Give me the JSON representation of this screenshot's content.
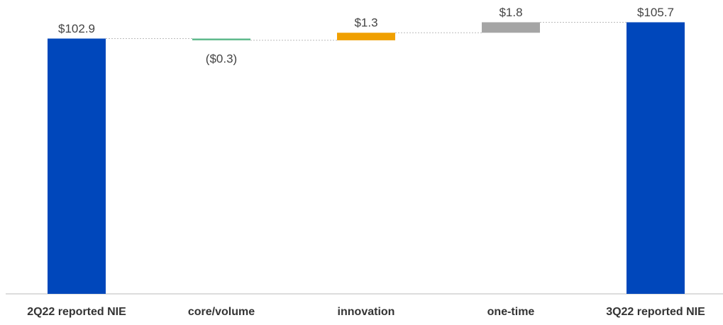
{
  "chart_data": {
    "type": "waterfall",
    "categories": [
      "2Q22 reported NIE",
      "core/volume",
      "innovation",
      "one-time",
      "3Q22 reported NIE"
    ],
    "values": [
      102.9,
      -0.3,
      1.3,
      1.8,
      105.7
    ],
    "value_labels": [
      "$102.9",
      "($0.3)",
      "$1.3",
      "$1.8",
      "$105.7"
    ],
    "totals": [
      true,
      false,
      false,
      false,
      true
    ],
    "colors": [
      "#0047bb",
      "#5cb88a",
      "#f0a000",
      "#a5a5a5",
      "#0047bb"
    ],
    "ylim": [
      59,
      106
    ]
  }
}
